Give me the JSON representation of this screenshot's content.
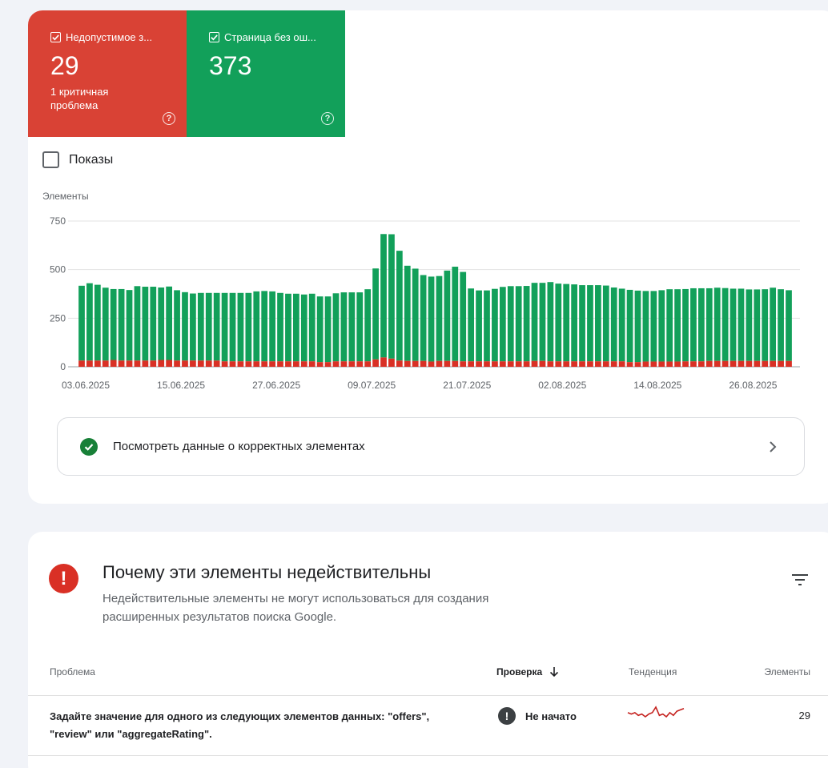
{
  "tiles": {
    "invalid": {
      "label": "Недопустимое з...",
      "value": "29",
      "sub": "1 критичная проблема",
      "color": "#d94235",
      "checked": true
    },
    "valid": {
      "label": "Страница без ош...",
      "value": "373",
      "color": "#12a05a",
      "checked": true
    }
  },
  "impressions": {
    "label": "Показы",
    "checked": false
  },
  "chart_data": {
    "type": "bar",
    "stacked": true,
    "ylabel": "Элементы",
    "ylim": [
      0,
      750
    ],
    "yticks": [
      "750",
      "500",
      "250",
      "0"
    ],
    "xticks": [
      "03.06.2025",
      "15.06.2025",
      "27.06.2025",
      "09.07.2025",
      "21.07.2025",
      "02.08.2025",
      "14.08.2025",
      "26.08.2025"
    ],
    "grid": true,
    "series": [
      {
        "color": "#d93025",
        "values": [
          32,
          32,
          32,
          32,
          35,
          32,
          32,
          32,
          32,
          32,
          35,
          35,
          32,
          32,
          32,
          32,
          32,
          32,
          28,
          28,
          28,
          28,
          28,
          28,
          28,
          28,
          28,
          28,
          28,
          28,
          24,
          24,
          28,
          28,
          28,
          28,
          28,
          38,
          48,
          42,
          32,
          30,
          30,
          30,
          27,
          30,
          30,
          30,
          28,
          28,
          28,
          28,
          28,
          28,
          28,
          28,
          28,
          30,
          30,
          28,
          28,
          28,
          28,
          28,
          28,
          28,
          28,
          28,
          28,
          24,
          24,
          27,
          27,
          27,
          27,
          27,
          28,
          28,
          28,
          30,
          30,
          30,
          30,
          30,
          30,
          30,
          30,
          30,
          30,
          30
        ]
      },
      {
        "color": "#12a05a",
        "values": [
          385,
          398,
          390,
          375,
          365,
          368,
          363,
          383,
          380,
          380,
          373,
          378,
          362,
          352,
          345,
          348,
          348,
          348,
          352,
          352,
          352,
          352,
          360,
          362,
          360,
          352,
          348,
          348,
          344,
          348,
          338,
          338,
          350,
          355,
          355,
          355,
          371,
          468,
          635,
          640,
          565,
          490,
          475,
          442,
          437,
          437,
          465,
          485,
          460,
          375,
          365,
          365,
          373,
          383,
          387,
          387,
          388,
          402,
          402,
          408,
          400,
          398,
          396,
          392,
          392,
          392,
          390,
          380,
          374,
          372,
          368,
          363,
          363,
          367,
          372,
          372,
          372,
          376,
          376,
          374,
          377,
          375,
          372,
          372,
          368,
          368,
          369,
          377,
          369,
          364
        ]
      }
    ]
  },
  "valid_link": {
    "label": "Посмотреть данные о корректных элементах"
  },
  "issues": {
    "title": "Почему эти элементы недействительны",
    "desc": "Недействительные элементы не могут использоваться для создания расширенных результатов поиска Google.",
    "columns": {
      "problem": "Проблема",
      "validation": "Проверка",
      "trend": "Тенденция",
      "items": "Элементы"
    },
    "rows": [
      {
        "problem": "Задайте значение для одного из следующих элементов данных: \"offers\", \"review\" или \"aggregateRating\".",
        "status": "Не начато",
        "trend": [
          31,
          30,
          31,
          29,
          30,
          28,
          30,
          31,
          35,
          29,
          30,
          28,
          31,
          29,
          32,
          33,
          34
        ],
        "count": "29"
      }
    ]
  }
}
